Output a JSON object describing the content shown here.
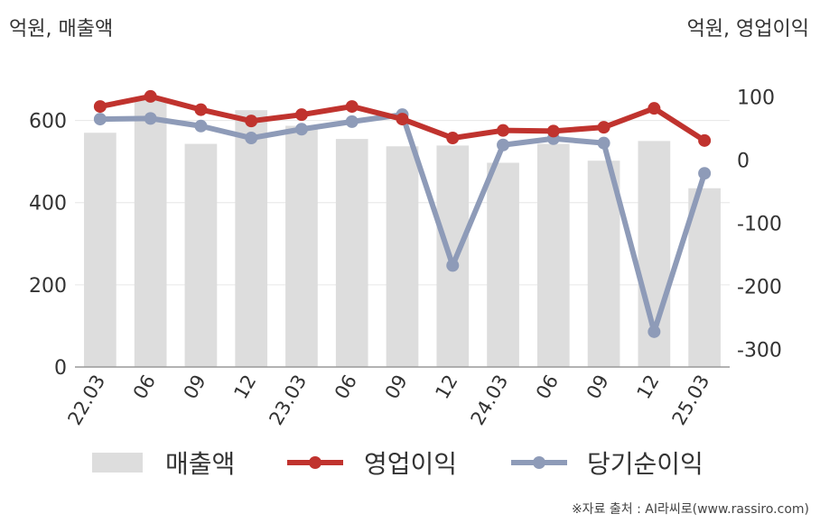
{
  "units": {
    "left": "억원, 매출액",
    "right": "억원, 영업이익"
  },
  "source": "※자료 출처 : AI라씨로(www.rassiro.com)",
  "chart_data": {
    "type": "bar",
    "categories": [
      "22.03",
      "06",
      "09",
      "12",
      "23.03",
      "06",
      "09",
      "12",
      "24.03",
      "06",
      "09",
      "12",
      "25.03"
    ],
    "series": [
      {
        "name": "매출액",
        "type": "bar",
        "axis": "left",
        "color": "#dddddd",
        "values": [
          570,
          650,
          543,
          625,
          587,
          555,
          537,
          539,
          497,
          543,
          502,
          550,
          435
        ]
      },
      {
        "name": "영업이익",
        "type": "line",
        "axis": "right",
        "color": "#c0332e",
        "values": [
          85,
          101,
          80,
          62,
          72,
          85,
          65,
          35,
          47,
          46,
          52,
          82,
          31
        ]
      },
      {
        "name": "당기순이익",
        "type": "line",
        "axis": "right",
        "color": "#8e9bb8",
        "values": [
          65,
          66,
          54,
          35,
          49,
          61,
          72,
          -167,
          24,
          34,
          27,
          -272,
          -21
        ]
      }
    ],
    "y_left": {
      "ylim": [
        0,
        700
      ],
      "ticks": [
        0,
        200,
        400,
        600
      ]
    },
    "y_right": {
      "ylim": [
        -328,
        128
      ],
      "ticks": [
        100,
        0,
        -100,
        -200,
        -300
      ]
    },
    "legend": [
      "매출액",
      "영업이익",
      "당기순이익"
    ],
    "legend_position": "bottom",
    "grid": true
  }
}
